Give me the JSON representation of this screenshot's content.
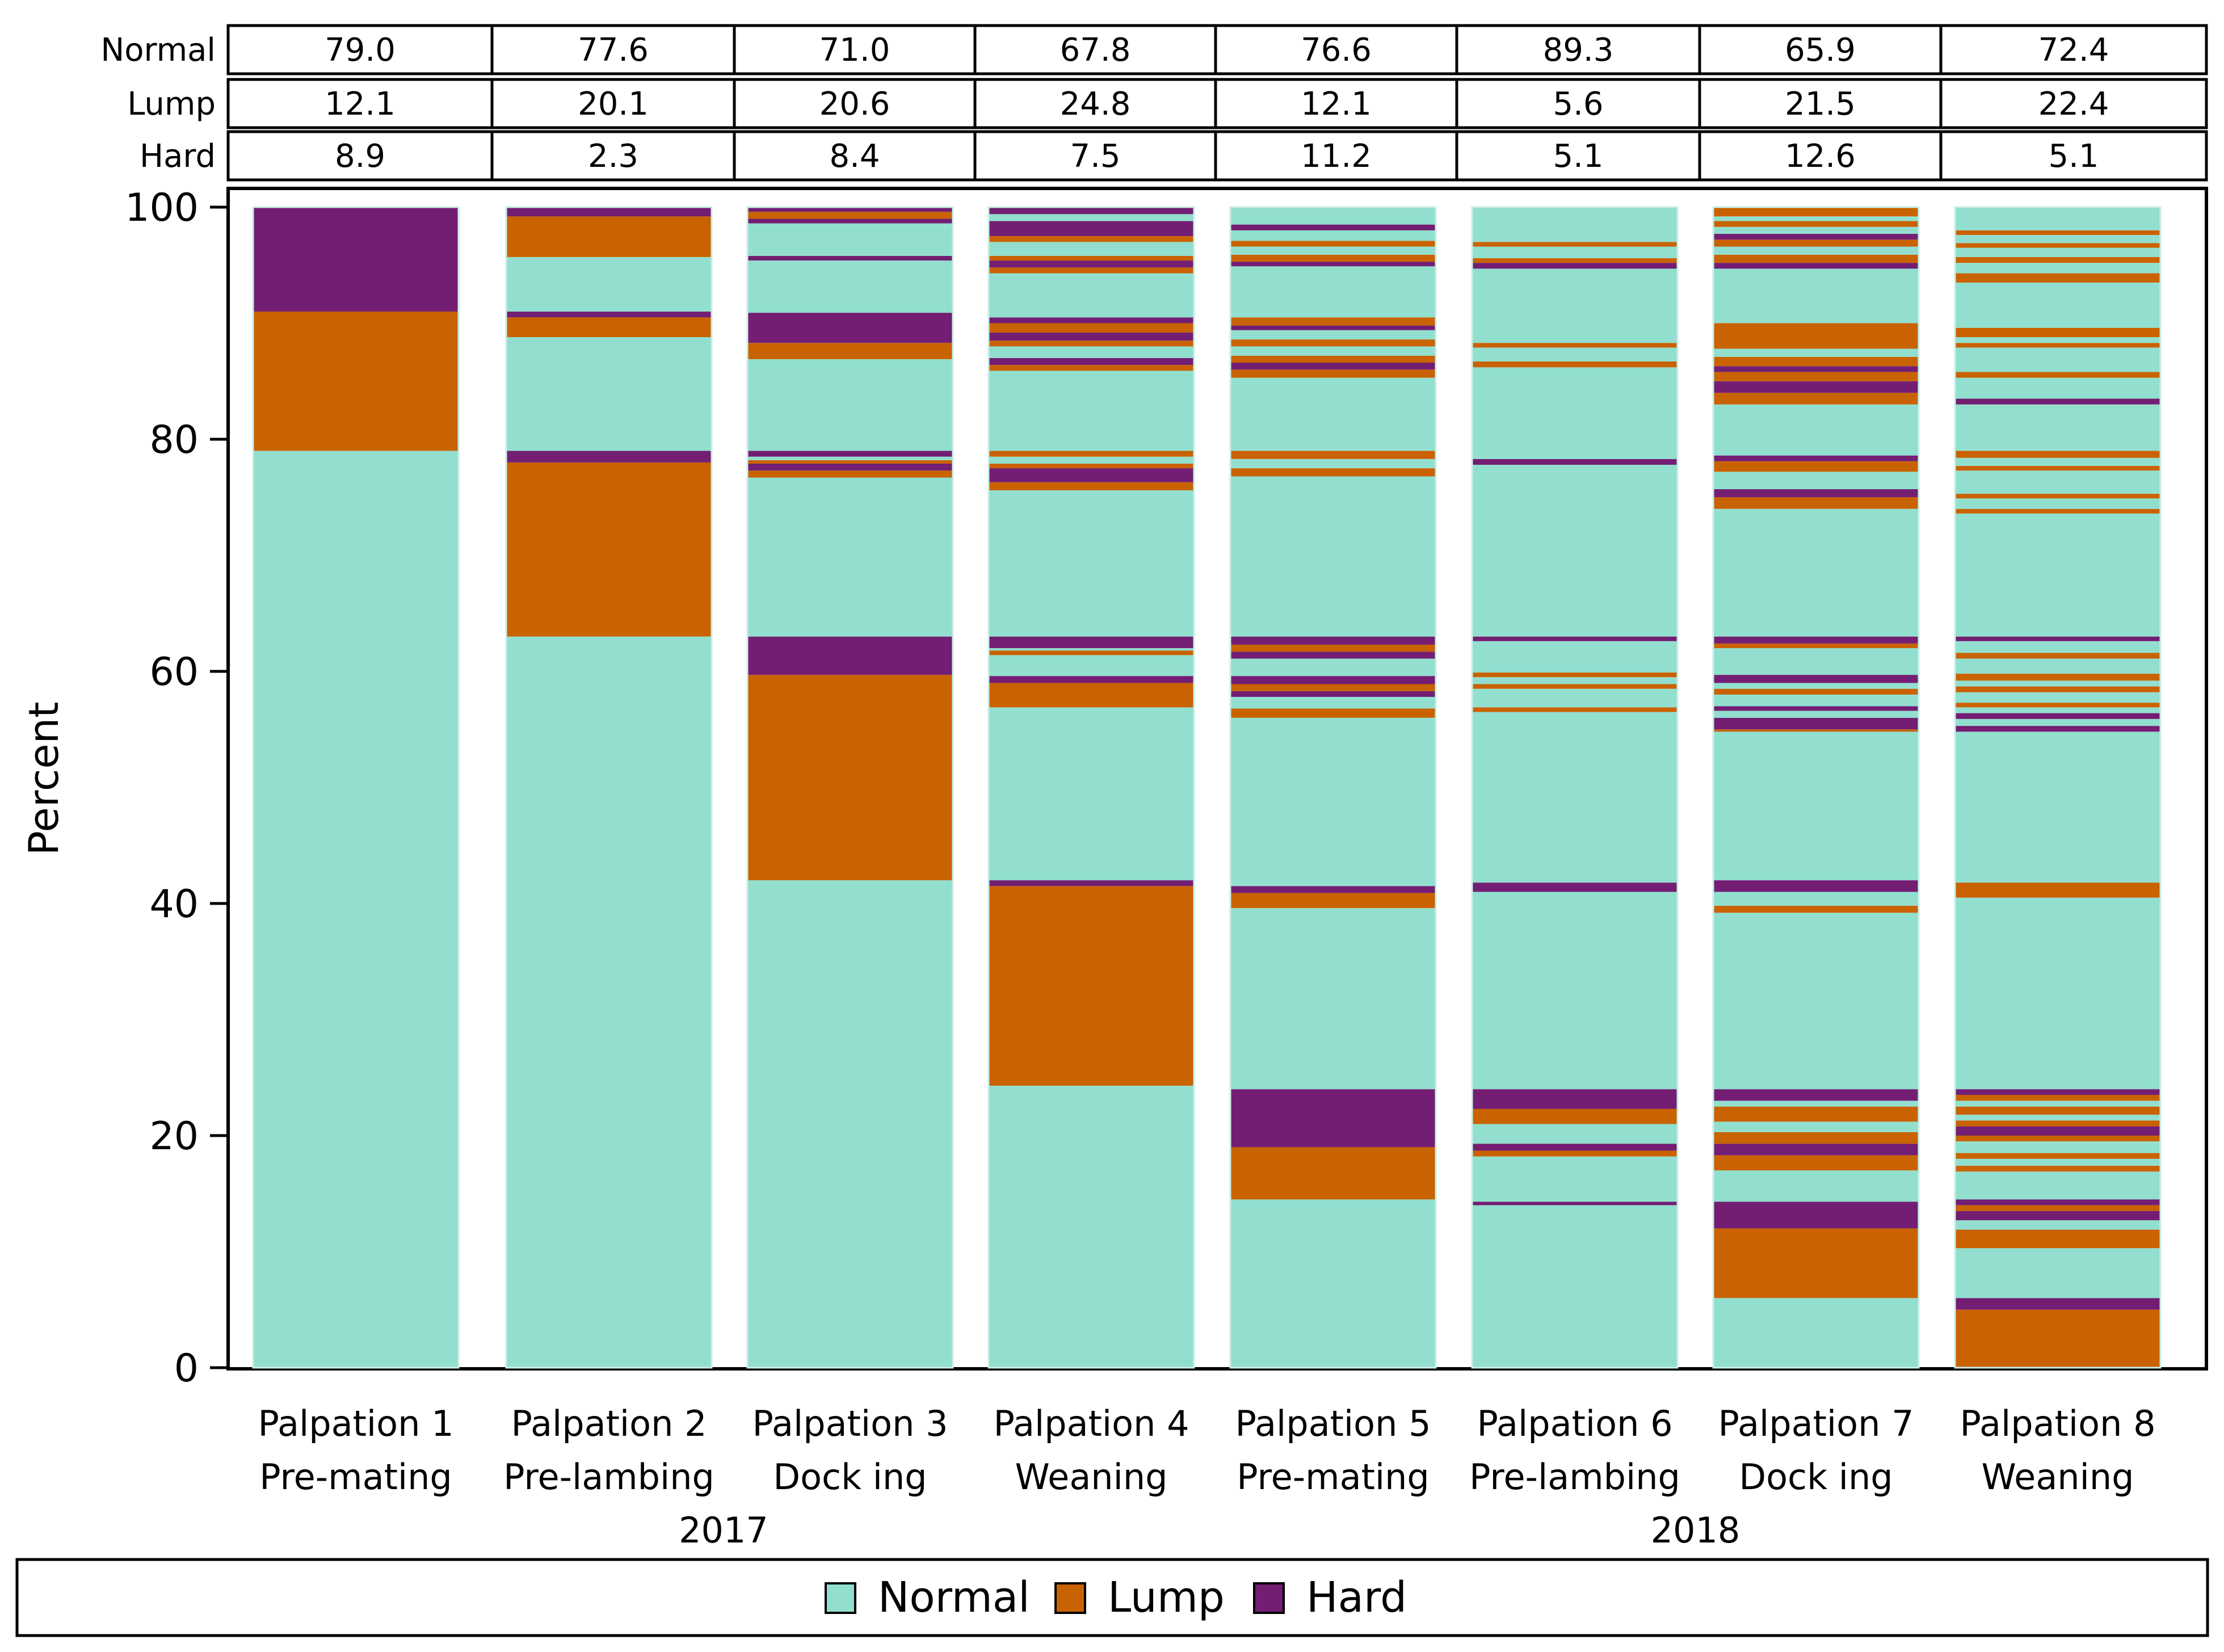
{
  "chart_data": {
    "type": "bar",
    "stacked": true,
    "ylabel": "Percent",
    "ylim": [
      0,
      100
    ],
    "yticks": [
      0,
      20,
      40,
      60,
      80,
      100
    ],
    "categories": [
      {
        "line1": "Palpation 1",
        "line2": "Pre-mating"
      },
      {
        "line1": "Palpation 2",
        "line2": "Pre-lambing"
      },
      {
        "line1": "Palpation 3",
        "line2": "Dock ing"
      },
      {
        "line1": "Palpation 4",
        "line2": "Weaning"
      },
      {
        "line1": "Palpation 5",
        "line2": "Pre-mating"
      },
      {
        "line1": "Palpation 6",
        "line2": "Pre-lambing"
      },
      {
        "line1": "Palpation 7",
        "line2": "Dock ing"
      },
      {
        "line1": "Palpation 8",
        "line2": "Weaning"
      }
    ],
    "groups": [
      {
        "label": "2017",
        "from": 0,
        "to": 3
      },
      {
        "label": "2018",
        "from": 4,
        "to": 7
      }
    ],
    "table": {
      "row_labels": [
        "Normal",
        "Lump",
        "Hard"
      ],
      "rows": [
        [
          "79.0",
          "77.6",
          "71.0",
          "67.8",
          "76.6",
          "89.3",
          "65.9",
          "72.4"
        ],
        [
          "12.1",
          "20.1",
          "20.6",
          "24.8",
          "12.1",
          "5.6",
          "21.5",
          "22.4"
        ],
        [
          "8.9",
          "2.3",
          "8.4",
          "7.5",
          "11.2",
          "5.1",
          "12.6",
          "5.1"
        ]
      ]
    },
    "legend": {
      "position": "bottom",
      "items": [
        {
          "name": "Normal",
          "color": "#92dfcf"
        },
        {
          "name": "Lump",
          "color": "#c96200"
        },
        {
          "name": "Hard",
          "color": "#731e73"
        }
      ]
    },
    "series_segments": [
      [
        [
          0,
          79,
          "N"
        ],
        [
          79,
          91,
          "L"
        ],
        [
          91,
          100,
          "H"
        ]
      ],
      [
        [
          0,
          63,
          "N"
        ],
        [
          63,
          78,
          "L"
        ],
        [
          78,
          79,
          "H"
        ],
        [
          79,
          88.8,
          "N"
        ],
        [
          88.8,
          90.5,
          "L"
        ],
        [
          90.5,
          91,
          "H"
        ],
        [
          91,
          95.7,
          "N"
        ],
        [
          95.7,
          99.2,
          "L"
        ],
        [
          99.2,
          100,
          "H"
        ]
      ],
      [
        [
          0,
          42,
          "N"
        ],
        [
          42,
          59.7,
          "L"
        ],
        [
          59.7,
          63,
          "H"
        ],
        [
          63,
          76.7,
          "N"
        ],
        [
          76.7,
          77.3,
          "L"
        ],
        [
          77.3,
          77.9,
          "H"
        ],
        [
          77.9,
          78.2,
          "L"
        ],
        [
          78.2,
          78.5,
          "N"
        ],
        [
          78.5,
          79,
          "H"
        ],
        [
          79,
          86.9,
          "N"
        ],
        [
          86.9,
          88.3,
          "L"
        ],
        [
          88.3,
          90.9,
          "H"
        ],
        [
          90.9,
          95.4,
          "N"
        ],
        [
          95.4,
          95.8,
          "H"
        ],
        [
          95.8,
          98.6,
          "N"
        ],
        [
          98.6,
          99,
          "H"
        ],
        [
          99,
          99.6,
          "L"
        ],
        [
          99.6,
          100,
          "H"
        ]
      ],
      [
        [
          0,
          24.3,
          "N"
        ],
        [
          24.3,
          41.5,
          "L"
        ],
        [
          41.5,
          42,
          "H"
        ],
        [
          42,
          56.9,
          "N"
        ],
        [
          56.9,
          59,
          "L"
        ],
        [
          59,
          59.6,
          "H"
        ],
        [
          59.6,
          61.4,
          "N"
        ],
        [
          61.4,
          61.8,
          "L"
        ],
        [
          61.8,
          62,
          "N"
        ],
        [
          62,
          63,
          "H"
        ],
        [
          63,
          75.6,
          "N"
        ],
        [
          75.6,
          76.3,
          "L"
        ],
        [
          76.3,
          77.5,
          "H"
        ],
        [
          77.5,
          77.9,
          "L"
        ],
        [
          77.9,
          78.5,
          "N"
        ],
        [
          78.5,
          79,
          "L"
        ],
        [
          79,
          85.9,
          "N"
        ],
        [
          85.9,
          86.4,
          "L"
        ],
        [
          86.4,
          87,
          "H"
        ],
        [
          87,
          88,
          "N"
        ],
        [
          88,
          88.5,
          "L"
        ],
        [
          88.5,
          89.2,
          "H"
        ],
        [
          89.2,
          90,
          "L"
        ],
        [
          90,
          90.5,
          "H"
        ],
        [
          90.5,
          94.3,
          "N"
        ],
        [
          94.3,
          94.8,
          "L"
        ],
        [
          94.8,
          95.4,
          "H"
        ],
        [
          95.4,
          95.8,
          "L"
        ],
        [
          95.8,
          97,
          "N"
        ],
        [
          97,
          97.5,
          "L"
        ],
        [
          97.5,
          98.8,
          "H"
        ],
        [
          98.8,
          99.4,
          "N"
        ],
        [
          99.4,
          100,
          "H"
        ]
      ],
      [
        [
          0,
          14.5,
          "N"
        ],
        [
          14.5,
          19,
          "L"
        ],
        [
          19,
          24,
          "H"
        ],
        [
          24,
          39.6,
          "N"
        ],
        [
          39.6,
          40.9,
          "L"
        ],
        [
          40.9,
          41.5,
          "H"
        ],
        [
          41.5,
          56,
          "N"
        ],
        [
          56,
          56.8,
          "L"
        ],
        [
          56.8,
          57.8,
          "N"
        ],
        [
          57.8,
          58.3,
          "H"
        ],
        [
          58.3,
          58.9,
          "L"
        ],
        [
          58.9,
          59.6,
          "H"
        ],
        [
          59.6,
          61.1,
          "N"
        ],
        [
          61.1,
          61.7,
          "H"
        ],
        [
          61.7,
          62.3,
          "L"
        ],
        [
          62.3,
          63,
          "H"
        ],
        [
          63,
          76.8,
          "N"
        ],
        [
          76.8,
          77.5,
          "L"
        ],
        [
          77.5,
          78.3,
          "N"
        ],
        [
          78.3,
          79,
          "L"
        ],
        [
          79,
          85.3,
          "N"
        ],
        [
          85.3,
          86,
          "L"
        ],
        [
          86,
          86.6,
          "H"
        ],
        [
          86.6,
          87.2,
          "L"
        ],
        [
          87.2,
          88,
          "N"
        ],
        [
          88,
          88.6,
          "L"
        ],
        [
          88.6,
          89.4,
          "N"
        ],
        [
          89.4,
          89.8,
          "H"
        ],
        [
          89.8,
          90.5,
          "L"
        ],
        [
          90.5,
          94.9,
          "N"
        ],
        [
          94.9,
          95.3,
          "H"
        ],
        [
          95.3,
          95.9,
          "L"
        ],
        [
          95.9,
          96.6,
          "N"
        ],
        [
          96.6,
          97.1,
          "L"
        ],
        [
          97.1,
          98,
          "N"
        ],
        [
          98,
          98.5,
          "H"
        ],
        [
          98.5,
          100,
          "N"
        ]
      ],
      [
        [
          0,
          14,
          "N"
        ],
        [
          14,
          14.3,
          "H"
        ],
        [
          14.3,
          18.2,
          "N"
        ],
        [
          18.2,
          18.7,
          "L"
        ],
        [
          18.7,
          19.3,
          "H"
        ],
        [
          19.3,
          21,
          "N"
        ],
        [
          21,
          22.3,
          "L"
        ],
        [
          22.3,
          24,
          "H"
        ],
        [
          24,
          41,
          "N"
        ],
        [
          41,
          41.8,
          "H"
        ],
        [
          41.8,
          56.5,
          "N"
        ],
        [
          56.5,
          56.9,
          "L"
        ],
        [
          56.9,
          58.5,
          "N"
        ],
        [
          58.5,
          58.9,
          "L"
        ],
        [
          58.9,
          59.5,
          "N"
        ],
        [
          59.5,
          59.9,
          "L"
        ],
        [
          59.9,
          62.6,
          "N"
        ],
        [
          62.6,
          63,
          "H"
        ],
        [
          63,
          77.8,
          "N"
        ],
        [
          77.8,
          78.3,
          "H"
        ],
        [
          78.3,
          86.2,
          "N"
        ],
        [
          86.2,
          86.7,
          "L"
        ],
        [
          86.7,
          87.9,
          "N"
        ],
        [
          87.9,
          88.3,
          "L"
        ],
        [
          88.3,
          94.7,
          "N"
        ],
        [
          94.7,
          95.2,
          "H"
        ],
        [
          95.2,
          95.6,
          "L"
        ],
        [
          95.6,
          96.6,
          "N"
        ],
        [
          96.6,
          97,
          "L"
        ],
        [
          97,
          100,
          "N"
        ]
      ],
      [
        [
          0,
          6,
          "N"
        ],
        [
          6,
          12,
          "L"
        ],
        [
          12,
          14.3,
          "H"
        ],
        [
          14.3,
          17,
          "N"
        ],
        [
          17,
          18.3,
          "L"
        ],
        [
          18.3,
          19.3,
          "H"
        ],
        [
          19.3,
          20.3,
          "L"
        ],
        [
          20.3,
          21.2,
          "N"
        ],
        [
          21.2,
          22.5,
          "L"
        ],
        [
          22.5,
          23,
          "N"
        ],
        [
          23,
          24,
          "H"
        ],
        [
          24,
          39.2,
          "N"
        ],
        [
          39.2,
          39.8,
          "L"
        ],
        [
          39.8,
          41,
          "N"
        ],
        [
          41,
          42,
          "H"
        ],
        [
          42,
          54.8,
          "N"
        ],
        [
          54.8,
          55,
          "L"
        ],
        [
          55,
          56,
          "H"
        ],
        [
          56,
          56.6,
          "N"
        ],
        [
          56.6,
          57,
          "H"
        ],
        [
          57,
          58,
          "N"
        ],
        [
          58,
          58.5,
          "L"
        ],
        [
          58.5,
          59,
          "N"
        ],
        [
          59,
          59.7,
          "H"
        ],
        [
          59.7,
          62,
          "N"
        ],
        [
          62,
          62.4,
          "L"
        ],
        [
          62.4,
          63,
          "H"
        ],
        [
          63,
          74,
          "N"
        ],
        [
          74,
          75,
          "L"
        ],
        [
          75,
          75.7,
          "H"
        ],
        [
          75.7,
          77.2,
          "N"
        ],
        [
          77.2,
          78.1,
          "L"
        ],
        [
          78.1,
          78.6,
          "H"
        ],
        [
          78.6,
          83,
          "N"
        ],
        [
          83,
          84,
          "L"
        ],
        [
          84,
          85,
          "H"
        ],
        [
          85,
          85.8,
          "L"
        ],
        [
          85.8,
          86.3,
          "H"
        ],
        [
          86.3,
          87.1,
          "L"
        ],
        [
          87.1,
          87.8,
          "N"
        ],
        [
          87.8,
          90,
          "L"
        ],
        [
          90,
          94.7,
          "N"
        ],
        [
          94.7,
          95.2,
          "H"
        ],
        [
          95.2,
          95.9,
          "L"
        ],
        [
          95.9,
          96.6,
          "N"
        ],
        [
          96.6,
          97.2,
          "L"
        ],
        [
          97.2,
          97.7,
          "H"
        ],
        [
          97.7,
          98.3,
          "N"
        ],
        [
          98.3,
          98.8,
          "L"
        ],
        [
          98.8,
          99.2,
          "N"
        ],
        [
          99.2,
          100,
          "L"
        ]
      ],
      [
        [
          0,
          5,
          "L"
        ],
        [
          5,
          6,
          "H"
        ],
        [
          6,
          10.3,
          "N"
        ],
        [
          10.3,
          11.9,
          "L"
        ],
        [
          11.9,
          12.7,
          "N"
        ],
        [
          12.7,
          13.5,
          "H"
        ],
        [
          13.5,
          14,
          "L"
        ],
        [
          14,
          14.5,
          "H"
        ],
        [
          14.5,
          16.9,
          "N"
        ],
        [
          16.9,
          17.4,
          "L"
        ],
        [
          17.4,
          18,
          "N"
        ],
        [
          18,
          18.5,
          "L"
        ],
        [
          18.5,
          19.5,
          "N"
        ],
        [
          19.5,
          20,
          "L"
        ],
        [
          20,
          20.8,
          "H"
        ],
        [
          20.8,
          21.3,
          "L"
        ],
        [
          21.3,
          21.8,
          "N"
        ],
        [
          21.8,
          22.5,
          "L"
        ],
        [
          22.5,
          23,
          "N"
        ],
        [
          23,
          23.5,
          "L"
        ],
        [
          23.5,
          24,
          "H"
        ],
        [
          24,
          40.5,
          "N"
        ],
        [
          40.5,
          41.8,
          "L"
        ],
        [
          41.8,
          54.8,
          "N"
        ],
        [
          54.8,
          55.3,
          "H"
        ],
        [
          55.3,
          55.9,
          "N"
        ],
        [
          55.9,
          56.4,
          "H"
        ],
        [
          56.4,
          56.9,
          "N"
        ],
        [
          56.9,
          57.3,
          "L"
        ],
        [
          57.3,
          58.2,
          "N"
        ],
        [
          58.2,
          58.7,
          "L"
        ],
        [
          58.7,
          59.2,
          "N"
        ],
        [
          59.2,
          59.8,
          "L"
        ],
        [
          59.8,
          61.1,
          "N"
        ],
        [
          61.1,
          61.6,
          "L"
        ],
        [
          61.6,
          62.6,
          "N"
        ],
        [
          62.6,
          63,
          "H"
        ],
        [
          63,
          73.6,
          "N"
        ],
        [
          73.6,
          74,
          "L"
        ],
        [
          74,
          74.9,
          "N"
        ],
        [
          74.9,
          75.3,
          "L"
        ],
        [
          75.3,
          77.3,
          "N"
        ],
        [
          77.3,
          77.7,
          "L"
        ],
        [
          77.7,
          78.4,
          "N"
        ],
        [
          78.4,
          79,
          "L"
        ],
        [
          79,
          83,
          "N"
        ],
        [
          83,
          83.5,
          "H"
        ],
        [
          83.5,
          85.3,
          "N"
        ],
        [
          85.3,
          85.8,
          "L"
        ],
        [
          85.8,
          87.9,
          "N"
        ],
        [
          87.9,
          88.3,
          "L"
        ],
        [
          88.3,
          88.8,
          "N"
        ],
        [
          88.8,
          89.6,
          "L"
        ],
        [
          89.6,
          93.5,
          "N"
        ],
        [
          93.5,
          94.3,
          "L"
        ],
        [
          94.3,
          95.2,
          "N"
        ],
        [
          95.2,
          95.7,
          "L"
        ],
        [
          95.7,
          96.5,
          "N"
        ],
        [
          96.5,
          96.9,
          "L"
        ],
        [
          96.9,
          97.6,
          "N"
        ],
        [
          97.6,
          98,
          "L"
        ],
        [
          98,
          100,
          "N"
        ]
      ]
    ]
  }
}
